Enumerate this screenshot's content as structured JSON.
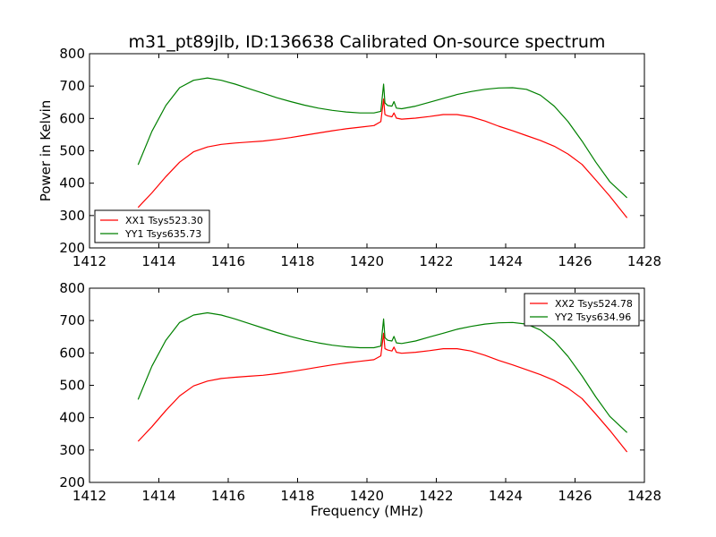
{
  "figure": {
    "title": "m31_pt89jlb, ID:136638 Calibrated On-source spectrum",
    "xlabel": "Frequency (MHz)"
  },
  "chart_data": [
    {
      "type": "line",
      "title": "m31_pt89jlb, ID:136638 Calibrated On-source spectrum",
      "xlabel": "",
      "ylabel": "Power in Kelvin",
      "xlim": [
        1412,
        1428
      ],
      "ylim": [
        200,
        800
      ],
      "xticks": [
        1412,
        1414,
        1416,
        1418,
        1420,
        1422,
        1424,
        1426,
        1428
      ],
      "yticks": [
        200,
        300,
        400,
        500,
        600,
        700,
        800
      ],
      "grid": false,
      "legend": "lower-left",
      "series": [
        {
          "name": "XX1 Tsys523.30",
          "color": "#ff0000",
          "x": [
            1413.4,
            1413.8,
            1414.2,
            1414.6,
            1415.0,
            1415.4,
            1415.8,
            1416.2,
            1416.6,
            1417.0,
            1417.4,
            1417.8,
            1418.2,
            1418.6,
            1419.0,
            1419.4,
            1419.8,
            1420.2,
            1420.4,
            1420.48,
            1420.52,
            1420.6,
            1420.72,
            1420.78,
            1420.85,
            1421.0,
            1421.4,
            1421.8,
            1422.2,
            1422.6,
            1423.0,
            1423.4,
            1423.8,
            1424.2,
            1424.6,
            1425.0,
            1425.4,
            1425.8,
            1426.2,
            1426.6,
            1427.0,
            1427.5
          ],
          "y": [
            325,
            370,
            420,
            465,
            497,
            512,
            520,
            524,
            527,
            530,
            535,
            541,
            548,
            555,
            562,
            568,
            573,
            578,
            590,
            660,
            612,
            608,
            605,
            617,
            601,
            598,
            601,
            606,
            612,
            612,
            605,
            592,
            576,
            562,
            547,
            532,
            514,
            490,
            458,
            410,
            360,
            293
          ]
        },
        {
          "name": "YY1 Tsys635.73",
          "color": "#008000",
          "x": [
            1413.4,
            1413.8,
            1414.2,
            1414.6,
            1415.0,
            1415.4,
            1415.8,
            1416.2,
            1416.6,
            1417.0,
            1417.4,
            1417.8,
            1418.2,
            1418.6,
            1419.0,
            1419.4,
            1419.8,
            1420.2,
            1420.4,
            1420.48,
            1420.52,
            1420.6,
            1420.72,
            1420.78,
            1420.85,
            1421.0,
            1421.4,
            1421.8,
            1422.2,
            1422.6,
            1423.0,
            1423.4,
            1423.8,
            1424.2,
            1424.6,
            1425.0,
            1425.4,
            1425.8,
            1426.2,
            1426.6,
            1427.0,
            1427.5
          ],
          "y": [
            457,
            560,
            640,
            695,
            718,
            725,
            718,
            706,
            692,
            678,
            664,
            652,
            641,
            632,
            625,
            620,
            617,
            617,
            622,
            706,
            648,
            640,
            638,
            652,
            632,
            630,
            638,
            650,
            662,
            674,
            683,
            690,
            694,
            695,
            690,
            672,
            638,
            590,
            530,
            465,
            405,
            355
          ]
        }
      ]
    },
    {
      "type": "line",
      "title": "",
      "xlabel": "Frequency (MHz)",
      "ylabel": "",
      "xlim": [
        1412,
        1428
      ],
      "ylim": [
        200,
        800
      ],
      "xticks": [
        1412,
        1414,
        1416,
        1418,
        1420,
        1422,
        1424,
        1426,
        1428
      ],
      "yticks": [
        200,
        300,
        400,
        500,
        600,
        700,
        800
      ],
      "grid": false,
      "legend": "upper-right",
      "series": [
        {
          "name": "XX2 Tsys524.78",
          "color": "#ff0000",
          "x": [
            1413.4,
            1413.8,
            1414.2,
            1414.6,
            1415.0,
            1415.4,
            1415.8,
            1416.2,
            1416.6,
            1417.0,
            1417.4,
            1417.8,
            1418.2,
            1418.6,
            1419.0,
            1419.4,
            1419.8,
            1420.2,
            1420.4,
            1420.48,
            1420.52,
            1420.6,
            1420.72,
            1420.78,
            1420.85,
            1421.0,
            1421.4,
            1421.8,
            1422.2,
            1422.6,
            1423.0,
            1423.4,
            1423.8,
            1424.2,
            1424.6,
            1425.0,
            1425.4,
            1425.8,
            1426.2,
            1426.6,
            1427.0,
            1427.5
          ],
          "y": [
            327,
            372,
            422,
            467,
            498,
            513,
            521,
            525,
            528,
            531,
            536,
            542,
            549,
            556,
            563,
            569,
            574,
            579,
            591,
            661,
            613,
            609,
            606,
            618,
            602,
            599,
            602,
            607,
            613,
            613,
            606,
            593,
            577,
            563,
            548,
            533,
            515,
            491,
            459,
            411,
            361,
            294
          ]
        },
        {
          "name": "YY2 Tsys634.96",
          "color": "#008000",
          "x": [
            1413.4,
            1413.8,
            1414.2,
            1414.6,
            1415.0,
            1415.4,
            1415.8,
            1416.2,
            1416.6,
            1417.0,
            1417.4,
            1417.8,
            1418.2,
            1418.6,
            1419.0,
            1419.4,
            1419.8,
            1420.2,
            1420.4,
            1420.48,
            1420.52,
            1420.6,
            1420.72,
            1420.78,
            1420.85,
            1421.0,
            1421.4,
            1421.8,
            1422.2,
            1422.6,
            1423.0,
            1423.4,
            1423.8,
            1424.2,
            1424.6,
            1425.0,
            1425.4,
            1425.8,
            1426.2,
            1426.6,
            1427.0,
            1427.5
          ],
          "y": [
            456,
            559,
            639,
            694,
            717,
            724,
            717,
            705,
            691,
            677,
            663,
            651,
            640,
            631,
            624,
            619,
            616,
            616,
            621,
            705,
            647,
            639,
            637,
            651,
            631,
            629,
            637,
            649,
            661,
            673,
            682,
            689,
            693,
            694,
            689,
            671,
            637,
            589,
            529,
            464,
            404,
            354
          ]
        }
      ]
    }
  ]
}
